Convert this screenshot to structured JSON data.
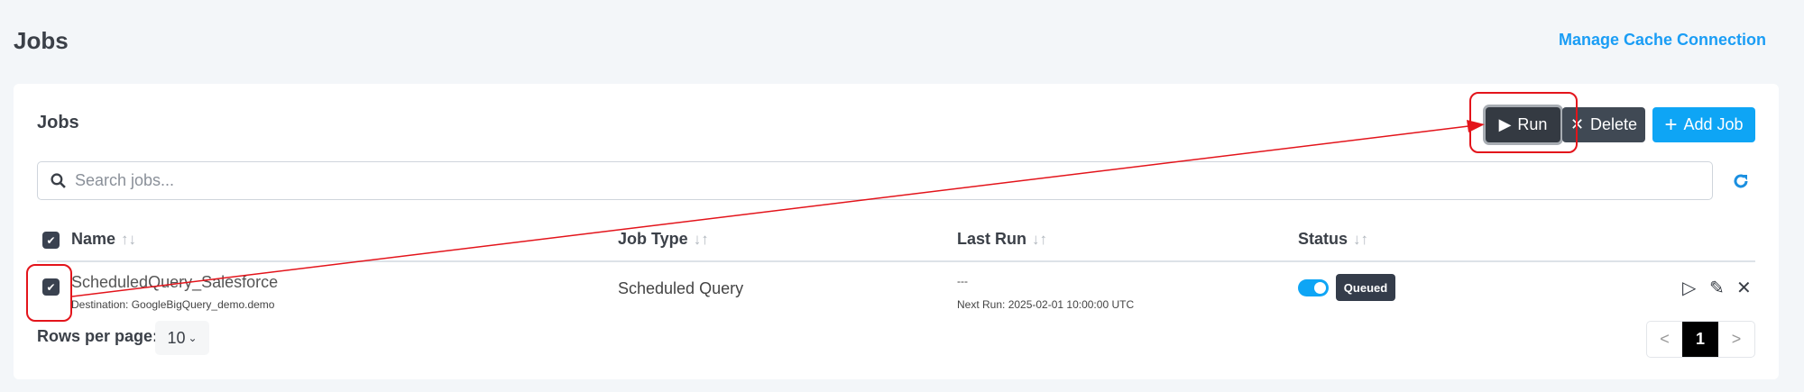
{
  "page": {
    "title": "Jobs",
    "manage_link": "Manage Cache Connection"
  },
  "card": {
    "title": "Jobs"
  },
  "toolbar": {
    "run_label": "Run",
    "delete_label": "Delete",
    "add_label": "Add Job"
  },
  "search": {
    "placeholder": "Search jobs...",
    "value": ""
  },
  "table": {
    "columns": [
      "Name",
      "Job Type",
      "Last Run",
      "Status"
    ],
    "rows": [
      {
        "name": "ScheduledQuery_Salesforce",
        "destination": "Destination: GoogleBigQuery_demo.demo",
        "job_type": "Scheduled Query",
        "last_run": "---",
        "next_run": "Next Run: 2025-02-01 10:00:00 UTC",
        "enabled": true,
        "status": "Queued",
        "selected": true
      }
    ]
  },
  "footer": {
    "rows_per_page_label": "Rows per page:",
    "rows_per_page": "10",
    "current_page": "1",
    "prev": "<",
    "next": ">"
  },
  "colors": {
    "accent": "#0ea5f5",
    "dark": "#343a42",
    "annotation": "#e3141b"
  }
}
